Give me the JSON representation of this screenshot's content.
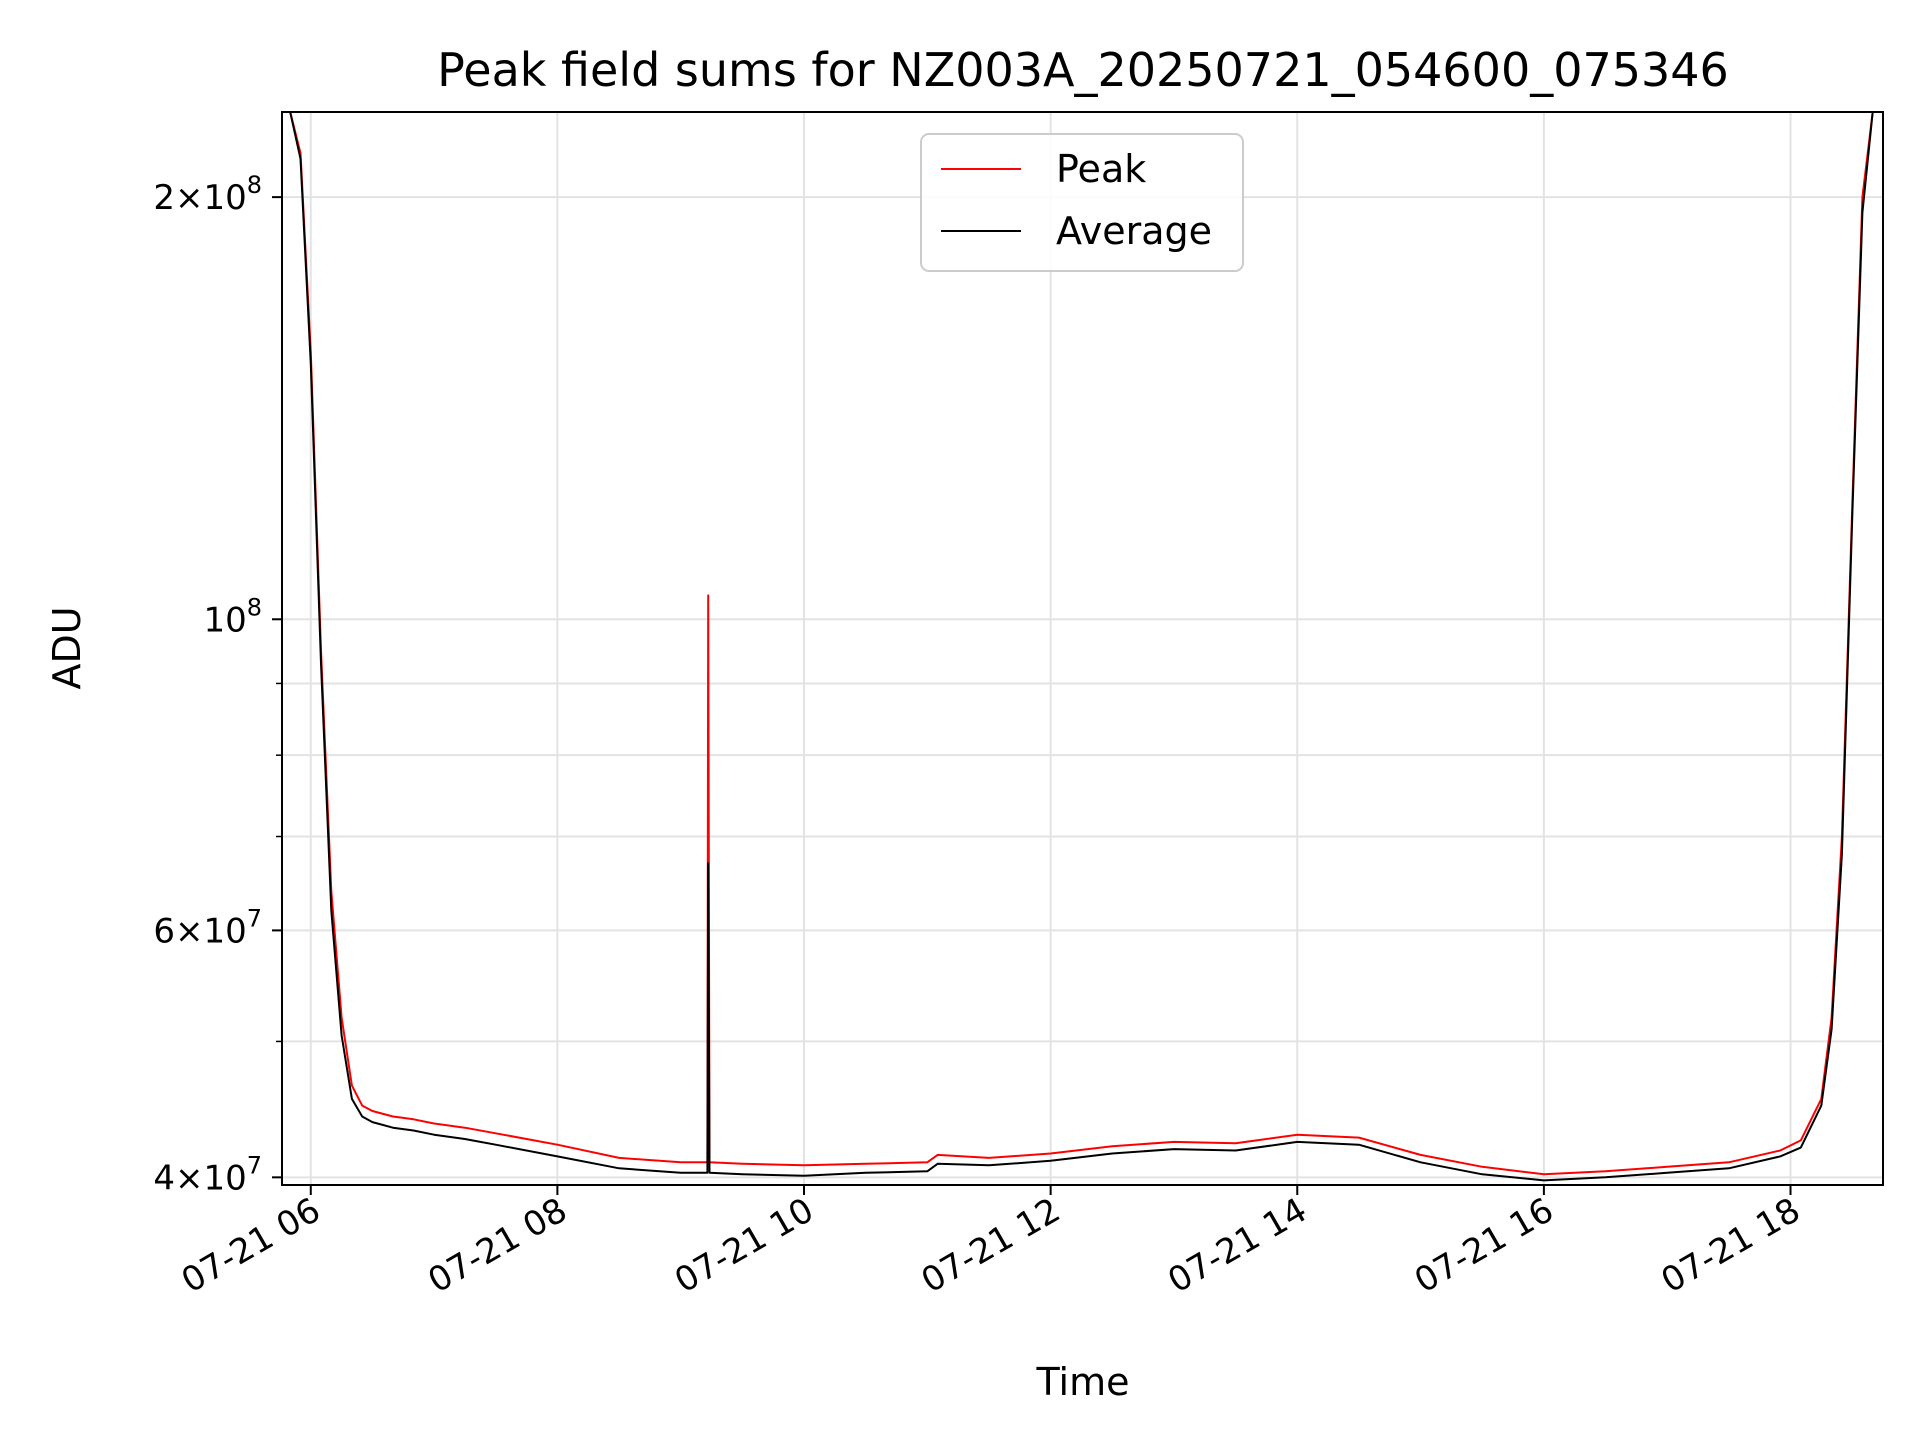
{
  "chart_data": {
    "type": "line",
    "title": "Peak field sums for NZ003A_20250721_054600_075346",
    "xlabel": "Time",
    "ylabel": "ADU",
    "yscale": "log",
    "grid": true,
    "legend_position": "top-center",
    "xlim": [
      "2025-07-21 05:46",
      "2025-07-21 18:45"
    ],
    "ylim": [
      39500000,
      230000000
    ],
    "x_ticks": [
      "07-21 06",
      "07-21 08",
      "07-21 10",
      "07-21 12",
      "07-21 14",
      "07-21 16",
      "07-21 18"
    ],
    "y_ticks": [
      {
        "value": 40000000,
        "base": "4×10",
        "exp": "7"
      },
      {
        "value": 60000000,
        "base": "6×10",
        "exp": "7"
      },
      {
        "value": 100000000,
        "base": "10",
        "exp": "8"
      },
      {
        "value": 200000000,
        "base": "2×10",
        "exp": "8"
      }
    ],
    "y_minor_ticks": [
      50000000,
      70000000,
      80000000,
      90000000
    ],
    "series": [
      {
        "name": "Peak",
        "color": "#ff0000",
        "x": [
          "2025-07-21 05:46",
          "2025-07-21 05:50",
          "2025-07-21 05:55",
          "2025-07-21 06:00",
          "2025-07-21 06:05",
          "2025-07-21 06:10",
          "2025-07-21 06:15",
          "2025-07-21 06:20",
          "2025-07-21 06:25",
          "2025-07-21 06:30",
          "2025-07-21 06:40",
          "2025-07-21 06:50",
          "2025-07-21 07:00",
          "2025-07-21 07:15",
          "2025-07-21 07:30",
          "2025-07-21 08:00",
          "2025-07-21 08:30",
          "2025-07-21 09:00",
          "2025-07-21 09:13",
          "2025-07-21 09:13",
          "2025-07-21 09:14",
          "2025-07-21 09:30",
          "2025-07-21 10:00",
          "2025-07-21 10:30",
          "2025-07-21 11:00",
          "2025-07-21 11:05",
          "2025-07-21 11:30",
          "2025-07-21 12:00",
          "2025-07-21 12:30",
          "2025-07-21 13:00",
          "2025-07-21 13:30",
          "2025-07-21 14:00",
          "2025-07-21 14:30",
          "2025-07-21 15:00",
          "2025-07-21 15:30",
          "2025-07-21 16:00",
          "2025-07-21 16:30",
          "2025-07-21 17:00",
          "2025-07-21 17:30",
          "2025-07-21 17:55",
          "2025-07-21 18:05",
          "2025-07-21 18:15",
          "2025-07-21 18:20",
          "2025-07-21 18:25",
          "2025-07-21 18:30",
          "2025-07-21 18:35",
          "2025-07-21 18:40",
          "2025-07-21 18:45"
        ],
        "values": [
          230000000,
          230000000,
          215000000,
          155000000,
          95000000,
          64000000,
          52000000,
          46500000,
          45000000,
          44600000,
          44200000,
          44000000,
          43700000,
          43400000,
          43000000,
          42200000,
          41300000,
          41000000,
          41000000,
          104000000,
          41000000,
          40900000,
          40800000,
          40900000,
          41000000,
          41500000,
          41300000,
          41600000,
          42100000,
          42400000,
          42300000,
          42900000,
          42700000,
          41500000,
          40700000,
          40200000,
          40400000,
          40700000,
          41000000,
          41800000,
          42500000,
          45500000,
          52000000,
          70000000,
          120000000,
          200000000,
          230000000,
          230000000
        ]
      },
      {
        "name": "Average",
        "color": "#000000",
        "x": [
          "2025-07-21 05:46",
          "2025-07-21 05:50",
          "2025-07-21 05:55",
          "2025-07-21 06:00",
          "2025-07-21 06:05",
          "2025-07-21 06:10",
          "2025-07-21 06:15",
          "2025-07-21 06:20",
          "2025-07-21 06:25",
          "2025-07-21 06:30",
          "2025-07-21 06:40",
          "2025-07-21 06:50",
          "2025-07-21 07:00",
          "2025-07-21 07:15",
          "2025-07-21 07:30",
          "2025-07-21 08:00",
          "2025-07-21 08:30",
          "2025-07-21 09:00",
          "2025-07-21 09:13",
          "2025-07-21 09:13",
          "2025-07-21 09:14",
          "2025-07-21 09:30",
          "2025-07-21 10:00",
          "2025-07-21 10:30",
          "2025-07-21 11:00",
          "2025-07-21 11:05",
          "2025-07-21 11:30",
          "2025-07-21 12:00",
          "2025-07-21 12:30",
          "2025-07-21 13:00",
          "2025-07-21 13:30",
          "2025-07-21 14:00",
          "2025-07-21 14:30",
          "2025-07-21 15:00",
          "2025-07-21 15:30",
          "2025-07-21 16:00",
          "2025-07-21 16:30",
          "2025-07-21 17:00",
          "2025-07-21 17:30",
          "2025-07-21 17:55",
          "2025-07-21 18:05",
          "2025-07-21 18:15",
          "2025-07-21 18:20",
          "2025-07-21 18:25",
          "2025-07-21 18:30",
          "2025-07-21 18:35",
          "2025-07-21 18:40",
          "2025-07-21 18:45"
        ],
        "values": [
          230000000,
          230000000,
          213000000,
          152000000,
          93000000,
          62000000,
          50500000,
          45500000,
          44200000,
          43800000,
          43400000,
          43200000,
          42900000,
          42600000,
          42200000,
          41400000,
          40600000,
          40300000,
          40300000,
          67000000,
          40300000,
          40200000,
          40100000,
          40300000,
          40400000,
          40900000,
          40800000,
          41100000,
          41600000,
          41900000,
          41800000,
          42400000,
          42200000,
          41000000,
          40200000,
          39800000,
          40000000,
          40300000,
          40600000,
          41400000,
          42000000,
          45000000,
          51000000,
          68000000,
          118000000,
          195000000,
          230000000,
          230000000
        ]
      }
    ]
  }
}
